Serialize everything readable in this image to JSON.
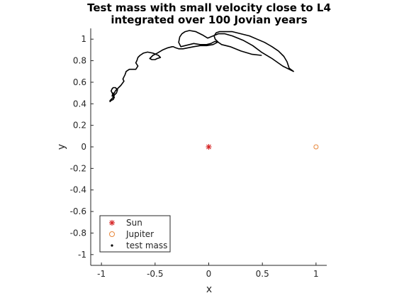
{
  "chart_data": {
    "type": "scatter",
    "title": [
      "Test mass with small velocity close to L4",
      "integrated over 100 Jovian years"
    ],
    "xlabel": "x",
    "ylabel": "y",
    "xlim": [
      -1.1,
      1.1
    ],
    "ylim": [
      -1.1,
      1.1
    ],
    "xticks": [
      -1,
      -0.5,
      0,
      0.5,
      1
    ],
    "xtick_labels": [
      "-1",
      "-0.5",
      "0",
      "0.5",
      "1"
    ],
    "yticks": [
      -1,
      -0.8,
      -0.6,
      -0.4,
      -0.2,
      0,
      0.2,
      0.4,
      0.6,
      0.8,
      1
    ],
    "ytick_labels": [
      "-1",
      "-0.8",
      "-0.6",
      "-0.4",
      "-0.2",
      "0",
      "0.2",
      "0.4",
      "0.6",
      "0.8",
      "1"
    ],
    "grid": false,
    "legend_position": "bottom-left",
    "series": [
      {
        "name": "Sun",
        "marker": "asterisk",
        "color": "#d62728",
        "x": [
          0
        ],
        "y": [
          0
        ]
      },
      {
        "name": "Jupiter",
        "marker": "circle",
        "color": "#e8873a",
        "x": [
          1
        ],
        "y": [
          0
        ]
      },
      {
        "name": "test mass",
        "marker": "dot",
        "color": "#000000",
        "x": [
          0.49,
          0.4,
          0.3,
          0.2,
          0.12,
          0.09,
          0.06,
          0.05,
          0.07,
          0.1,
          0.15,
          0.22,
          0.3,
          0.38,
          0.45,
          0.52,
          0.59,
          0.65,
          0.7,
          0.73,
          0.75,
          0.79,
          0.69,
          0.59,
          0.49,
          0.41,
          0.32,
          0.22,
          0.15,
          0.09,
          0.04,
          -0.01,
          -0.06,
          -0.12,
          -0.18,
          -0.22,
          -0.25,
          -0.27,
          -0.28,
          -0.26,
          -0.22,
          -0.18,
          -0.14,
          -0.08,
          -0.02,
          0.02,
          0.06,
          0.08,
          0.04,
          -0.02,
          -0.08,
          -0.14,
          -0.19,
          -0.24,
          -0.28,
          -0.31,
          -0.33,
          -0.34,
          -0.38,
          -0.43,
          -0.48,
          -0.52,
          -0.54,
          -0.55,
          -0.53,
          -0.5,
          -0.48,
          -0.45,
          -0.47,
          -0.52,
          -0.57,
          -0.61,
          -0.64,
          -0.66,
          -0.67,
          -0.68,
          -0.66,
          -0.68,
          -0.71,
          -0.74,
          -0.77,
          -0.78,
          -0.79,
          -0.8,
          -0.79,
          -0.82,
          -0.85,
          -0.87,
          -0.88,
          -0.89,
          -0.9,
          -0.9,
          -0.89,
          -0.88,
          -0.86,
          -0.85,
          -0.87,
          -0.89,
          -0.9,
          -0.91,
          -0.9,
          -0.89,
          -0.88,
          -0.89,
          -0.91,
          -0.92,
          -0.92,
          -0.91,
          -0.89,
          -0.88,
          -0.89
        ],
        "y": [
          0.85,
          0.86,
          0.89,
          0.93,
          0.95,
          0.97,
          1.0,
          1.03,
          1.06,
          1.07,
          1.07,
          1.07,
          1.05,
          1.03,
          1.0,
          0.97,
          0.93,
          0.89,
          0.84,
          0.79,
          0.73,
          0.7,
          0.75,
          0.82,
          0.88,
          0.94,
          0.99,
          1.03,
          1.05,
          1.05,
          1.03,
          1.01,
          1.04,
          1.07,
          1.08,
          1.07,
          1.05,
          1.02,
          0.97,
          0.93,
          0.94,
          0.95,
          0.96,
          0.95,
          0.95,
          0.96,
          0.98,
          0.97,
          0.95,
          0.94,
          0.94,
          0.93,
          0.92,
          0.91,
          0.91,
          0.92,
          0.93,
          0.93,
          0.92,
          0.9,
          0.87,
          0.85,
          0.83,
          0.82,
          0.81,
          0.81,
          0.82,
          0.83,
          0.85,
          0.87,
          0.88,
          0.87,
          0.85,
          0.83,
          0.8,
          0.78,
          0.75,
          0.72,
          0.72,
          0.72,
          0.7,
          0.67,
          0.65,
          0.63,
          0.61,
          0.57,
          0.54,
          0.52,
          0.5,
          0.49,
          0.48,
          0.47,
          0.47,
          0.48,
          0.5,
          0.53,
          0.55,
          0.55,
          0.54,
          0.52,
          0.5,
          0.48,
          0.46,
          0.44,
          0.43,
          0.42,
          0.43,
          0.44,
          0.46,
          0.48,
          0.5
        ]
      }
    ]
  }
}
